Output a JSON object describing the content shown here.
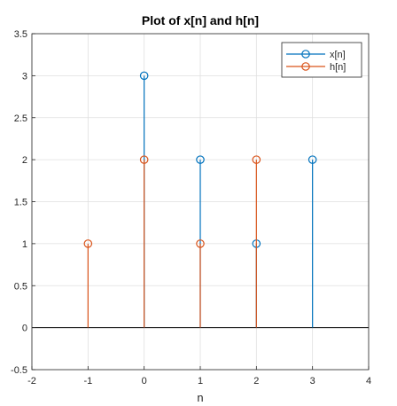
{
  "chart_data": {
    "type": "stem",
    "title": "Plot of x[n] and h[n]",
    "xlabel": "n",
    "ylabel": "",
    "xlim": [
      -2,
      4
    ],
    "ylim": [
      -0.5,
      3.5
    ],
    "xticks": [
      -2,
      -1,
      0,
      1,
      2,
      3,
      4
    ],
    "yticks": [
      -0.5,
      0,
      0.5,
      1,
      1.5,
      2,
      2.5,
      3,
      3.5
    ],
    "xtick_labels": [
      "-2",
      "-1",
      "0",
      "1",
      "2",
      "3",
      "4"
    ],
    "ytick_labels": [
      "-0.5",
      "0",
      "0.5",
      "1",
      "1.5",
      "2",
      "2.5",
      "3",
      "3.5"
    ],
    "grid": true,
    "legend_position": "top-right",
    "baseline": 0,
    "series": [
      {
        "name": "x[n]",
        "color": "#0072BD",
        "x": [
          0,
          1,
          2,
          3
        ],
        "values": [
          3,
          2,
          1,
          2
        ]
      },
      {
        "name": "h[n]",
        "color": "#D95319",
        "x": [
          -1,
          0,
          1,
          2
        ],
        "values": [
          1,
          2,
          1,
          2
        ]
      }
    ]
  }
}
